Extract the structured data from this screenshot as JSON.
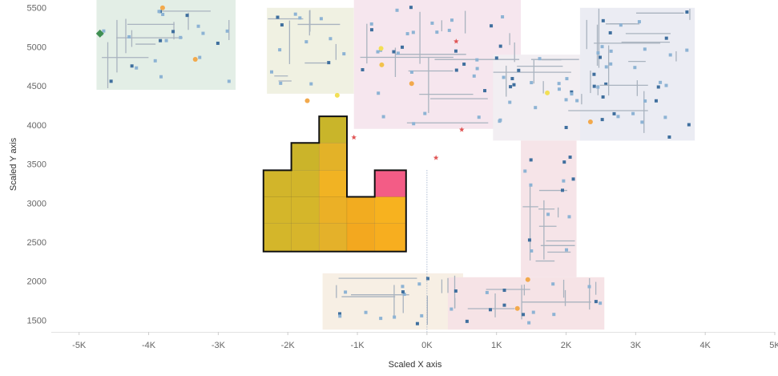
{
  "chart_data": {
    "type": "heatmap",
    "title": "",
    "xlabel": "Scaled X axis",
    "ylabel": "Scaled Y axis",
    "xlim": [
      -5400,
      5000
    ],
    "ylim": [
      1350,
      5600
    ],
    "x_ticks": [
      {
        "value": -5000,
        "label": "-5K"
      },
      {
        "value": -4000,
        "label": "-4K"
      },
      {
        "value": -3000,
        "label": "-3K"
      },
      {
        "value": -2000,
        "label": "-2K"
      },
      {
        "value": -1000,
        "label": "-1K"
      },
      {
        "value": 0,
        "label": "0K"
      },
      {
        "value": 1000,
        "label": "1K"
      },
      {
        "value": 2000,
        "label": "2K"
      },
      {
        "value": 3000,
        "label": "3K"
      },
      {
        "value": 4000,
        "label": "4K"
      },
      {
        "value": 5000,
        "label": "5K"
      }
    ],
    "y_ticks": [
      {
        "value": 1500,
        "label": "1500"
      },
      {
        "value": 2000,
        "label": "2000"
      },
      {
        "value": 2500,
        "label": "2500"
      },
      {
        "value": 3000,
        "label": "3000"
      },
      {
        "value": 3500,
        "label": "3500"
      },
      {
        "value": 4000,
        "label": "4000"
      },
      {
        "value": 4500,
        "label": "4500"
      },
      {
        "value": 5000,
        "label": "5000"
      },
      {
        "value": 5500,
        "label": "5500"
      }
    ],
    "grid": false,
    "legend": "none",
    "background_map": {
      "zones": [
        {
          "x0": -4750,
          "x1": -2750,
          "y0": 4450,
          "y1": 5600,
          "color": "#e3eee6"
        },
        {
          "x0": -2300,
          "x1": -1050,
          "y0": 4400,
          "y1": 5500,
          "color": "#f0f1e2"
        },
        {
          "x0": -1050,
          "x1": 1350,
          "y0": 3950,
          "y1": 5600,
          "color": "#f6e6ee"
        },
        {
          "x0": 950,
          "x1": 3200,
          "y0": 3800,
          "y1": 4900,
          "color": "#f2eef2"
        },
        {
          "x0": 2200,
          "x1": 3850,
          "y0": 3800,
          "y1": 5500,
          "color": "#ebecf3"
        },
        {
          "x0": 1350,
          "x1": 2150,
          "y0": 2050,
          "y1": 3800,
          "color": "#f6e4e8"
        },
        {
          "x0": -1500,
          "x1": 520,
          "y0": 1380,
          "y1": 2100,
          "color": "#f7efe4"
        },
        {
          "x0": 300,
          "x1": 2550,
          "y0": 1380,
          "y1": 2050,
          "color": "#f6e3e6"
        }
      ],
      "markers": [
        {
          "x": -4700,
          "y": 5170,
          "color": "#3f8f52",
          "shape": "diamond"
        },
        {
          "x": -3800,
          "y": 5500,
          "color": "#f2a94c",
          "shape": "circle"
        },
        {
          "x": -3330,
          "y": 4840,
          "color": "#f2a94c",
          "shape": "circle"
        },
        {
          "x": -1720,
          "y": 4310,
          "color": "#f2a94c",
          "shape": "circle"
        },
        {
          "x": -660,
          "y": 4980,
          "color": "#f2df55",
          "shape": "circle"
        },
        {
          "x": -650,
          "y": 4770,
          "color": "#f2c24c",
          "shape": "circle"
        },
        {
          "x": -220,
          "y": 4530,
          "color": "#f2a94c",
          "shape": "circle"
        },
        {
          "x": -1290,
          "y": 4380,
          "color": "#f2df55",
          "shape": "circle"
        },
        {
          "x": 1730,
          "y": 4410,
          "color": "#f2df55",
          "shape": "circle"
        },
        {
          "x": 2350,
          "y": 4040,
          "color": "#f2a94c",
          "shape": "circle"
        },
        {
          "x": 1450,
          "y": 2020,
          "color": "#f2a94c",
          "shape": "circle"
        },
        {
          "x": 1300,
          "y": 1650,
          "color": "#f2a94c",
          "shape": "circle"
        },
        {
          "x": 420,
          "y": 5070,
          "color": "#e05555",
          "shape": "star"
        },
        {
          "x": 500,
          "y": 3940,
          "color": "#e05555",
          "shape": "star"
        },
        {
          "x": -1050,
          "y": 3840,
          "color": "#e05555",
          "shape": "star"
        },
        {
          "x": 130,
          "y": 3580,
          "color": "#e05555",
          "shape": "star"
        }
      ]
    },
    "cells": [
      {
        "x0": -2350,
        "x1": -1950,
        "y0": 2380,
        "y1": 2740,
        "color": "#d4b62a"
      },
      {
        "x0": -1950,
        "x1": -1550,
        "y0": 2380,
        "y1": 2740,
        "color": "#d7b52b"
      },
      {
        "x0": -1550,
        "x1": -1150,
        "y0": 2380,
        "y1": 2740,
        "color": "#e4b12a"
      },
      {
        "x0": -1150,
        "x1": -750,
        "y0": 2380,
        "y1": 2740,
        "color": "#f3a81f"
      },
      {
        "x0": -750,
        "x1": -300,
        "y0": 2380,
        "y1": 2740,
        "color": "#f7ae1f"
      },
      {
        "x0": -2350,
        "x1": -1950,
        "y0": 2740,
        "y1": 3080,
        "color": "#d4b62a"
      },
      {
        "x0": -1950,
        "x1": -1550,
        "y0": 2740,
        "y1": 3080,
        "color": "#d5b62a"
      },
      {
        "x0": -1550,
        "x1": -1150,
        "y0": 2740,
        "y1": 3080,
        "color": "#ebb026"
      },
      {
        "x0": -1150,
        "x1": -750,
        "y0": 2740,
        "y1": 3080,
        "color": "#f2ac20"
      },
      {
        "x0": -750,
        "x1": -300,
        "y0": 2740,
        "y1": 3080,
        "color": "#f7b21f"
      },
      {
        "x0": -2350,
        "x1": -1950,
        "y0": 3080,
        "y1": 3420,
        "color": "#d2b52a"
      },
      {
        "x0": -1950,
        "x1": -1550,
        "y0": 3080,
        "y1": 3420,
        "color": "#d2b52a"
      },
      {
        "x0": -1550,
        "x1": -1150,
        "y0": 3080,
        "y1": 3420,
        "color": "#f1b323"
      },
      {
        "x0": -750,
        "x1": -300,
        "y0": 3080,
        "y1": 3420,
        "color": "#f35c86"
      },
      {
        "x0": -1950,
        "x1": -1550,
        "y0": 3420,
        "y1": 3770,
        "color": "#cbb42a"
      },
      {
        "x0": -1550,
        "x1": -1150,
        "y0": 3420,
        "y1": 3770,
        "color": "#e3b228"
      },
      {
        "x0": -1550,
        "x1": -1150,
        "y0": 3770,
        "y1": 4110,
        "color": "#c9b52a"
      }
    ],
    "selection_outline": [
      [
        -2350,
        2380
      ],
      [
        -300,
        2380
      ],
      [
        -300,
        3420
      ],
      [
        -750,
        3420
      ],
      [
        -750,
        3080
      ],
      [
        -1150,
        3080
      ],
      [
        -1150,
        4110
      ],
      [
        -1550,
        4110
      ],
      [
        -1550,
        3770
      ],
      [
        -1950,
        3770
      ],
      [
        -1950,
        3420
      ],
      [
        -2350,
        3420
      ]
    ],
    "reference_line": {
      "x": 0,
      "style": "dotted",
      "color": "#8aa0c0"
    }
  }
}
